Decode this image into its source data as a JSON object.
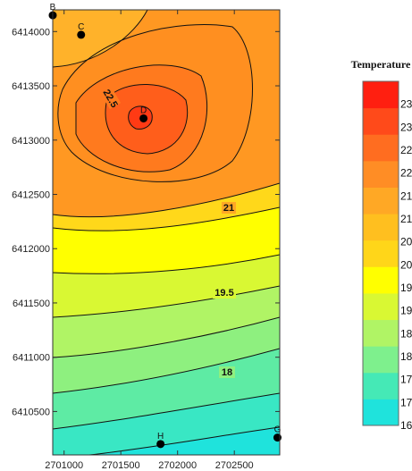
{
  "chart_data": {
    "type": "heatmap",
    "subtype": "contour-map",
    "x_ticks": [
      "2701000",
      "2701500",
      "2702000",
      "2702500"
    ],
    "y_ticks": [
      "6410500",
      "6411000",
      "6411500",
      "6412000",
      "6412500",
      "6413000",
      "6413500",
      "6414000"
    ],
    "xlim": [
      2700900,
      2702900
    ],
    "ylim": [
      6410100,
      6414200
    ],
    "legend": {
      "title": "Temperature",
      "placement": "right",
      "ticks": [
        "23.5",
        "23",
        "22.5",
        "22",
        "21.5",
        "21",
        "20.5",
        "20",
        "19.5",
        "19",
        "18.5",
        "18",
        "17.5",
        "17",
        "16.5"
      ],
      "range": [
        16.5,
        24
      ],
      "colors": [
        "#1fe3dc",
        "#45e9b6",
        "#7ef08d",
        "#b0f465",
        "#d9f833",
        "#ffff00",
        "#ffd619",
        "#ffbf1f",
        "#ffa825",
        "#ff8d25",
        "#ff6d20",
        "#ff4a1a",
        "#ff1f10"
      ]
    },
    "contour_labels": [
      "22.5",
      "21",
      "19.5",
      "18"
    ],
    "wells": [
      {
        "name": "B",
        "x": 2700900,
        "y": 6414150
      },
      {
        "name": "C",
        "x": 2701150,
        "y": 6413970
      },
      {
        "name": "D",
        "x": 2701700,
        "y": 6413200
      },
      {
        "name": "H",
        "x": 2701850,
        "y": 6410200
      },
      {
        "name": "G",
        "x": 2702880,
        "y": 6410260
      }
    ]
  }
}
